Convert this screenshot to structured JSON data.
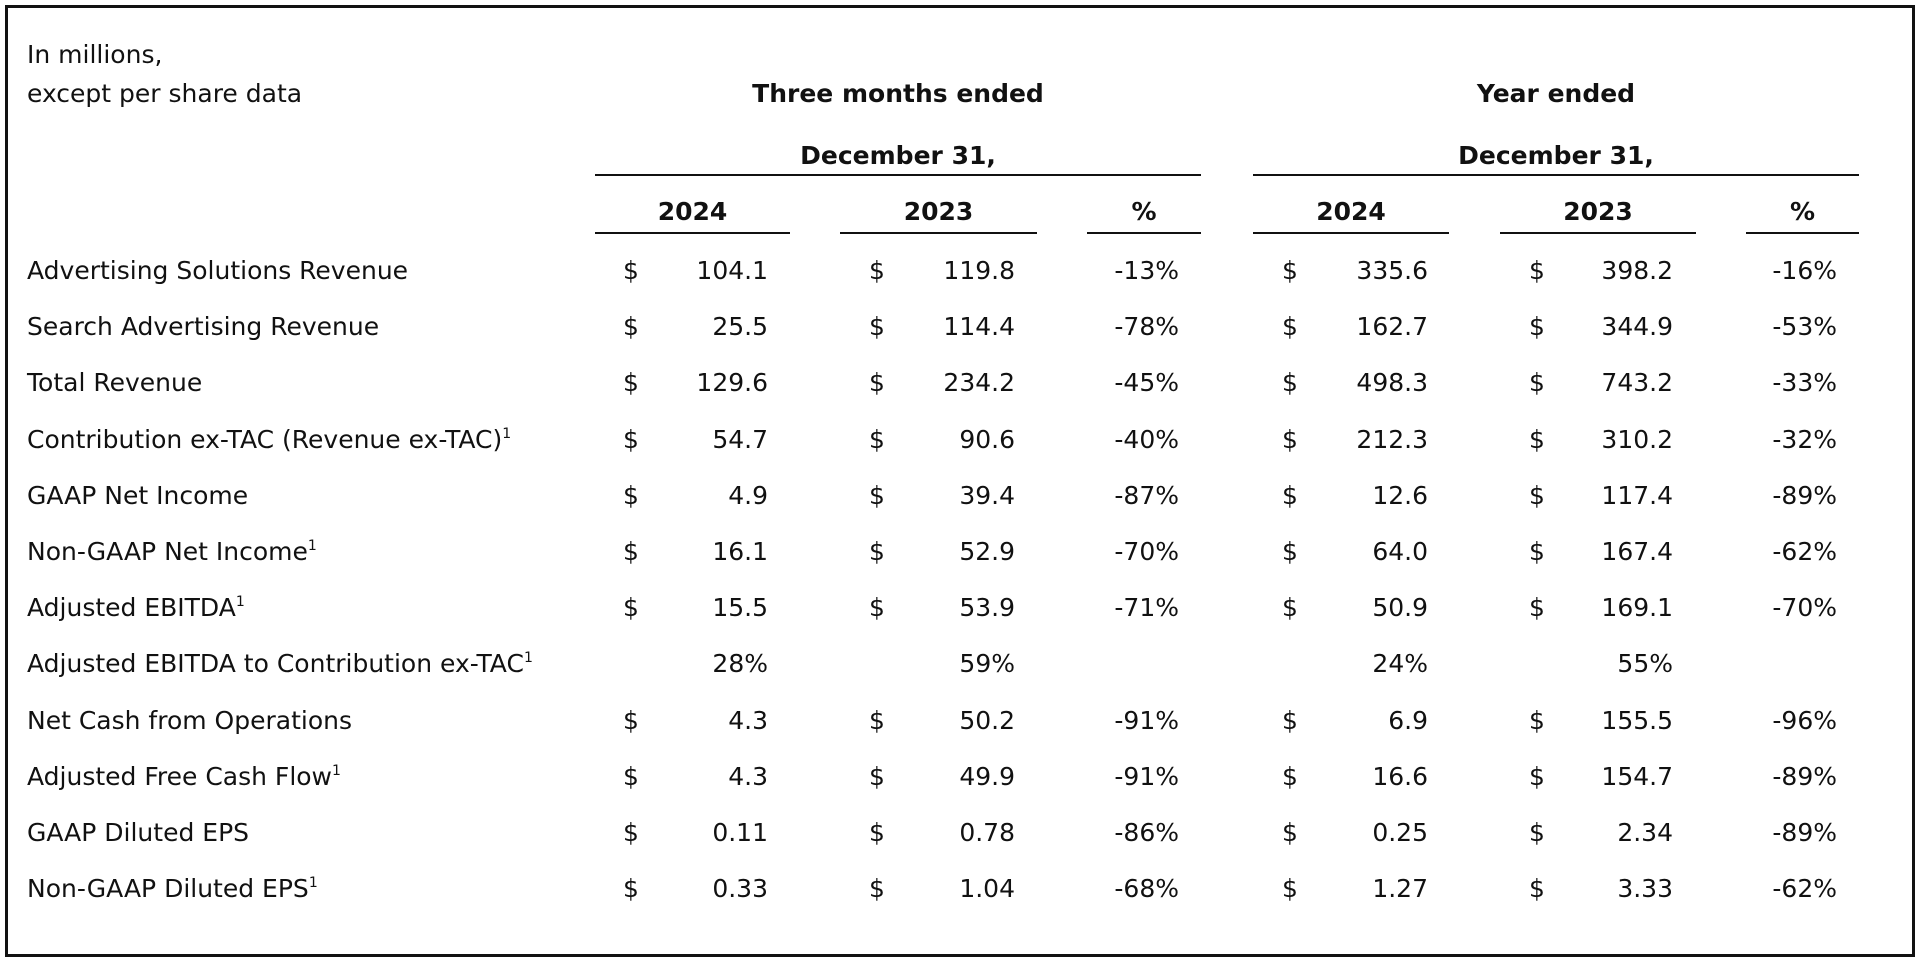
{
  "header": {
    "unit_line1": "In millions,",
    "unit_line2": "except per share data",
    "groups": [
      {
        "title": "Three months ended",
        "subtitle": "December 31,",
        "columns": [
          "2024",
          "2023",
          "%"
        ]
      },
      {
        "title": "Year ended",
        "subtitle": "December 31,",
        "columns": [
          "2024",
          "2023",
          "%"
        ]
      }
    ]
  },
  "table": {
    "rows": [
      {
        "label": "Advertising Solutions Revenue",
        "cells": [
          {
            "currency": "$",
            "value": "104.1"
          },
          {
            "currency": "$",
            "value": "119.8"
          },
          {
            "value": "-13%"
          },
          {
            "currency": "$",
            "value": "335.6"
          },
          {
            "currency": "$",
            "value": "398.2"
          },
          {
            "value": "-16%"
          }
        ]
      },
      {
        "label": "Search Advertising Revenue",
        "cells": [
          {
            "currency": "$",
            "value": "25.5"
          },
          {
            "currency": "$",
            "value": "114.4"
          },
          {
            "value": "-78%"
          },
          {
            "currency": "$",
            "value": "162.7"
          },
          {
            "currency": "$",
            "value": "344.9"
          },
          {
            "value": "-53%"
          }
        ]
      },
      {
        "label": "Total Revenue",
        "cells": [
          {
            "currency": "$",
            "value": "129.6"
          },
          {
            "currency": "$",
            "value": "234.2"
          },
          {
            "value": "-45%"
          },
          {
            "currency": "$",
            "value": "498.3"
          },
          {
            "currency": "$",
            "value": "743.2"
          },
          {
            "value": "-33%"
          }
        ]
      },
      {
        "label": "Contribution ex-TAC (Revenue ex-TAC)",
        "note": "1",
        "cells": [
          {
            "currency": "$",
            "value": "54.7"
          },
          {
            "currency": "$",
            "value": "90.6"
          },
          {
            "value": "-40%"
          },
          {
            "currency": "$",
            "value": "212.3"
          },
          {
            "currency": "$",
            "value": "310.2"
          },
          {
            "value": "-32%"
          }
        ]
      },
      {
        "label": "GAAP Net Income",
        "cells": [
          {
            "currency": "$",
            "value": "4.9"
          },
          {
            "currency": "$",
            "value": "39.4"
          },
          {
            "value": "-87%"
          },
          {
            "currency": "$",
            "value": "12.6"
          },
          {
            "currency": "$",
            "value": "117.4"
          },
          {
            "value": "-89%"
          }
        ]
      },
      {
        "label": "Non-GAAP Net Income",
        "note": "1",
        "cells": [
          {
            "currency": "$",
            "value": "16.1"
          },
          {
            "currency": "$",
            "value": "52.9"
          },
          {
            "value": "-70%"
          },
          {
            "currency": "$",
            "value": "64.0"
          },
          {
            "currency": "$",
            "value": "167.4"
          },
          {
            "value": "-62%"
          }
        ]
      },
      {
        "label": "Adjusted EBITDA",
        "note": "1",
        "cells": [
          {
            "currency": "$",
            "value": "15.5"
          },
          {
            "currency": "$",
            "value": "53.9"
          },
          {
            "value": "-71%"
          },
          {
            "currency": "$",
            "value": "50.9"
          },
          {
            "currency": "$",
            "value": "169.1"
          },
          {
            "value": "-70%"
          }
        ]
      },
      {
        "label": "Adjusted EBITDA to Contribution ex-TAC",
        "note": "1",
        "cells": [
          {
            "value": "28%"
          },
          {
            "value": "59%"
          },
          null,
          {
            "value": "24%"
          },
          {
            "value": "55%"
          },
          null
        ]
      },
      {
        "label": "Net Cash from Operations",
        "cells": [
          {
            "currency": "$",
            "value": "4.3"
          },
          {
            "currency": "$",
            "value": "50.2"
          },
          {
            "value": "-91%"
          },
          {
            "currency": "$",
            "value": "6.9"
          },
          {
            "currency": "$",
            "value": "155.5"
          },
          {
            "value": "-96%"
          }
        ]
      },
      {
        "label": "Adjusted Free Cash Flow",
        "note": "1",
        "cells": [
          {
            "currency": "$",
            "value": "4.3"
          },
          {
            "currency": "$",
            "value": "49.9"
          },
          {
            "value": "-91%"
          },
          {
            "currency": "$",
            "value": "16.6"
          },
          {
            "currency": "$",
            "value": "154.7"
          },
          {
            "value": "-89%"
          }
        ]
      },
      {
        "label": "GAAP Diluted EPS",
        "cells": [
          {
            "currency": "$",
            "value": "0.11"
          },
          {
            "currency": "$",
            "value": "0.78"
          },
          {
            "value": "-86%"
          },
          {
            "currency": "$",
            "value": "0.25"
          },
          {
            "currency": "$",
            "value": "2.34"
          },
          {
            "value": "-89%"
          }
        ]
      },
      {
        "label": "Non-GAAP Diluted EPS",
        "note": "1",
        "cells": [
          {
            "currency": "$",
            "value": "0.33"
          },
          {
            "currency": "$",
            "value": "1.04"
          },
          {
            "value": "-68%"
          },
          {
            "currency": "$",
            "value": "1.27"
          },
          {
            "currency": "$",
            "value": "3.33"
          },
          {
            "value": "-62%"
          }
        ]
      }
    ]
  }
}
